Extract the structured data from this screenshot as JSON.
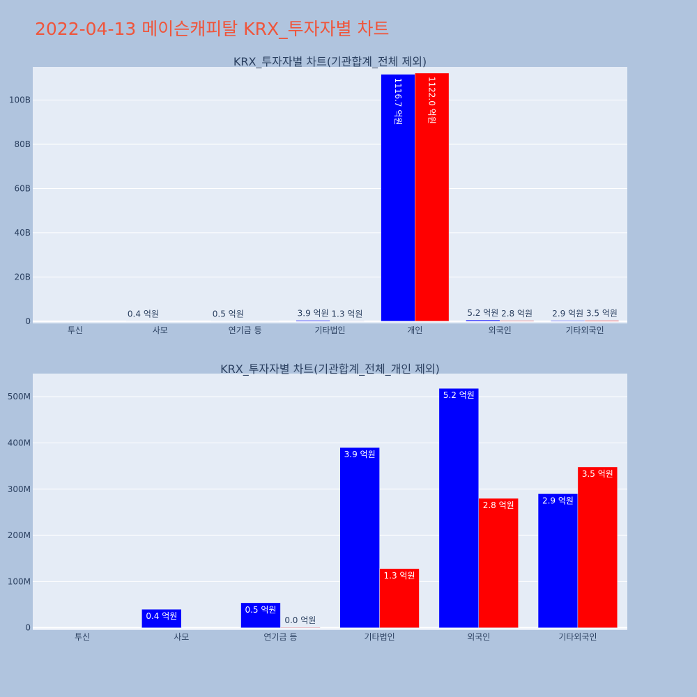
{
  "title": "2022-04-13 메이슨캐피탈 KRX_투자자별 차트",
  "colors": {
    "buy": "#0000ff",
    "sell": "#ff0000",
    "title": "#ef553b",
    "plot_bg": "#e5ecf6",
    "paper_bg": "#b0c4de"
  },
  "chart_data": [
    {
      "type": "bar",
      "title": "KRX_투자자별 차트(기관합계_전체 제외)",
      "categories": [
        "투신",
        "사모",
        "연기금 등",
        "기타법인",
        "개인",
        "외국인",
        "기타외국인"
      ],
      "ylim": [
        -1000000000,
        115000000000
      ],
      "yticks": [
        0,
        20000000000,
        40000000000,
        60000000000,
        80000000000,
        100000000000
      ],
      "ytick_labels": [
        "0",
        "20B",
        "40B",
        "60B",
        "80B",
        "100B"
      ],
      "grid": true,
      "series": [
        {
          "color": "#0000ff",
          "values": [
            0,
            40000000,
            54000000,
            390000000,
            111670000000,
            518000000,
            290000000
          ],
          "labels": [
            "",
            "0.4 억원",
            "0.5 억원",
            "3.9 억원",
            "1116.7 억원",
            "5.2 억원",
            "2.9 억원"
          ]
        },
        {
          "color": "#ff0000",
          "values": [
            0,
            0,
            1000000,
            128000000,
            112200000000,
            280000000,
            348000000
          ],
          "labels": [
            "",
            "",
            "",
            "1.3 억원",
            "1122.0 억원",
            "2.8 억원",
            "3.5 억원"
          ]
        }
      ]
    },
    {
      "type": "bar",
      "title": "KRX_투자자별 차트(기관합계_전체_개인 제외)",
      "categories": [
        "투신",
        "사모",
        "연기금 등",
        "기타법인",
        "외국인",
        "기타외국인"
      ],
      "ylim": [
        -5000000,
        550000000
      ],
      "yticks": [
        0,
        100000000,
        200000000,
        300000000,
        400000000,
        500000000
      ],
      "ytick_labels": [
        "0",
        "100M",
        "200M",
        "300M",
        "400M",
        "500M"
      ],
      "grid": true,
      "series": [
        {
          "color": "#0000ff",
          "values": [
            0,
            40000000,
            54000000,
            390000000,
            518000000,
            290000000
          ],
          "labels": [
            "",
            "0.4 억원",
            "0.5 억원",
            "3.9 억원",
            "5.2 억원",
            "2.9 억원"
          ]
        },
        {
          "color": "#ff0000",
          "values": [
            0,
            0,
            1000000,
            128000000,
            280000000,
            348000000
          ],
          "labels": [
            "",
            "",
            "0.0 억원",
            "1.3 억원",
            "2.8 억원",
            "3.5 억원"
          ]
        }
      ]
    }
  ]
}
